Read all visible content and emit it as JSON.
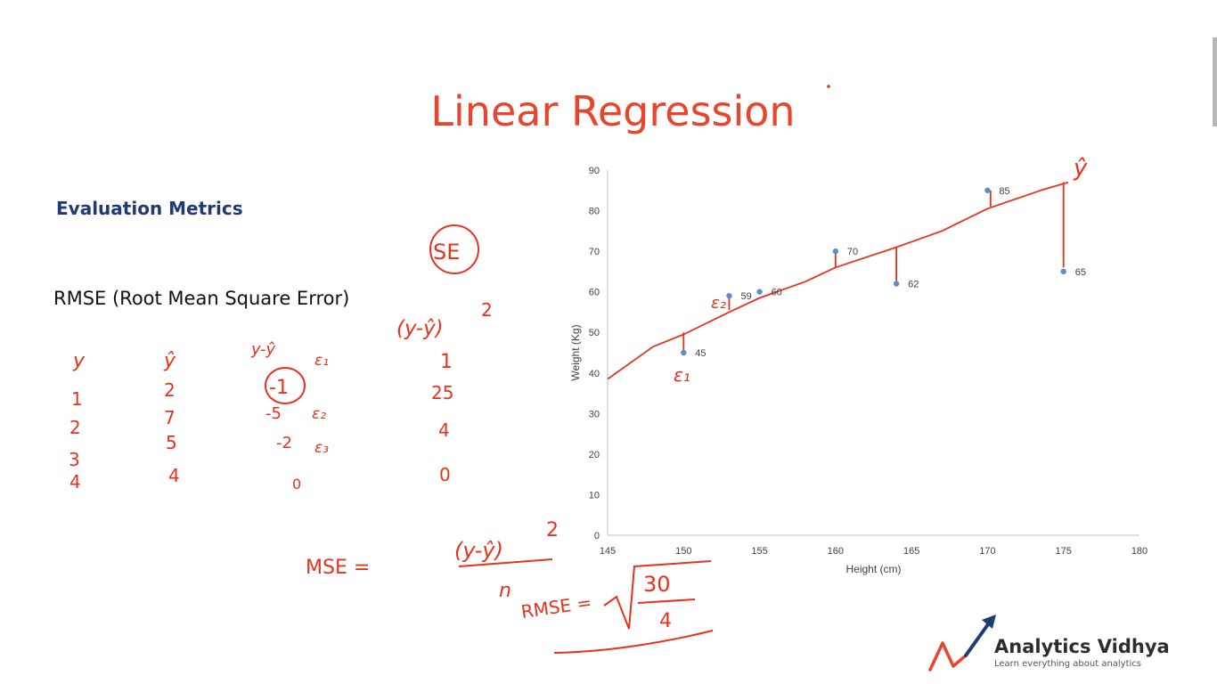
{
  "slide": {
    "title": "Linear Regression",
    "subtitle": "Evaluation Metrics",
    "metric": "RMSE (Root Mean Square Error)"
  },
  "chart_data": {
    "type": "scatter",
    "xlabel": "Height (cm)",
    "ylabel": "Weight (Kg)",
    "xlim": [
      145,
      180
    ],
    "ylim": [
      0,
      90
    ],
    "xticks": [
      145,
      150,
      155,
      160,
      165,
      170,
      175,
      180
    ],
    "yticks": [
      0,
      10,
      20,
      30,
      40,
      50,
      60,
      70,
      80,
      90
    ],
    "grid": false,
    "point_color": "#5b8fc9",
    "points": [
      {
        "x": 150,
        "y": 45,
        "label": "45"
      },
      {
        "x": 153,
        "y": 59,
        "label": "59"
      },
      {
        "x": 155,
        "y": 60,
        "label": "60"
      },
      {
        "x": 160,
        "y": 70,
        "label": "70"
      },
      {
        "x": 164,
        "y": 62,
        "label": "62"
      },
      {
        "x": 170,
        "y": 85,
        "label": "85"
      },
      {
        "x": 175,
        "y": 65,
        "label": "65"
      }
    ],
    "fit_line": [
      {
        "x": 145,
        "y": 38.5
      },
      {
        "x": 148,
        "y": 46.5
      },
      {
        "x": 150,
        "y": 49.5
      },
      {
        "x": 153,
        "y": 55
      },
      {
        "x": 155,
        "y": 58.5
      },
      {
        "x": 158,
        "y": 62.5
      },
      {
        "x": 160,
        "y": 66
      },
      {
        "x": 164,
        "y": 71
      },
      {
        "x": 167,
        "y": 75
      },
      {
        "x": 170,
        "y": 80.5
      },
      {
        "x": 173.5,
        "y": 85
      },
      {
        "x": 175.3,
        "y": 87
      }
    ],
    "residual_marks": [
      {
        "x": 150,
        "y1": 45.5,
        "y2": 50
      },
      {
        "x": 153,
        "y1": 59,
        "y2": 55.5
      },
      {
        "x": 160,
        "y1": 70,
        "y2": 66
      },
      {
        "x": 164,
        "y1": 62.5,
        "y2": 71
      },
      {
        "x": 170.2,
        "y1": 85,
        "y2": 81
      },
      {
        "x": 175,
        "y1": 66,
        "y2": 87
      }
    ],
    "annotation_color": "#e8321e"
  },
  "handwriting": {
    "header_y": "y",
    "header_yhat": "ŷ",
    "header_diff": "y-ŷ",
    "header_e1": "ε₁",
    "col_y": [
      "1",
      "2",
      "3",
      "4"
    ],
    "col_yhat": [
      "2",
      "7",
      "5",
      "4"
    ],
    "col_diff": [
      "-1",
      "-5",
      "-2",
      "0"
    ],
    "col_eps": [
      "ε₂",
      "ε₃"
    ],
    "se_label": "SE",
    "se_formula": "(y-ŷ)",
    "se_exp": "2",
    "col_se": [
      "1",
      "25",
      "4",
      "0"
    ],
    "mse_label": "MSE =",
    "mse_num": "(y-ŷ)",
    "mse_exp": "2",
    "mse_den": "n",
    "rmse_label": "RMSE =",
    "rmse_num": "30",
    "rmse_den": "4",
    "chart_e1": "ε₁",
    "chart_e2": "ε₂",
    "chart_yhat": "ŷ"
  },
  "logo": {
    "name": "Analytics Vidhya",
    "tagline": "Learn everything about analytics",
    "arrow_color": "#1f3b70",
    "wave_color": "#e8452c"
  }
}
